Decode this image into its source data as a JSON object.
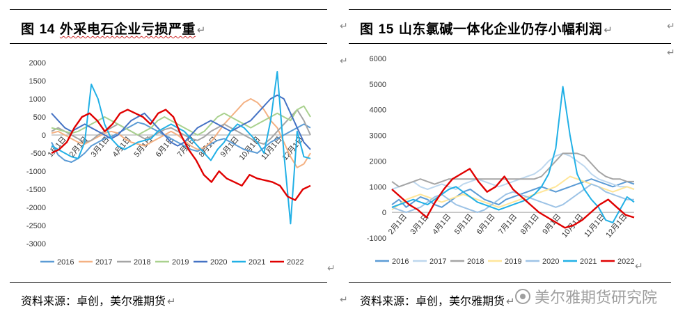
{
  "figures": [
    {
      "title_prefix": "图",
      "title_num": "14",
      "title_text": "外采电石企业亏损严重",
      "source": "资料来源：卓创，美尔雅期货"
    },
    {
      "title_prefix": "图",
      "title_num": "15",
      "title_text": "山东氯碱一体化企业仍存小幅利润",
      "source": "资料来源：卓创，美尔雅期货"
    }
  ],
  "paragraph_mark": "↵",
  "watermark": "美尔雅期货研究院",
  "chart_data": [
    {
      "type": "line",
      "ylim": [
        -3000,
        2000
      ],
      "yticks": [
        2000,
        1500,
        1000,
        500,
        0,
        -500,
        -1000,
        -1500,
        -2000,
        -2500,
        -3000
      ],
      "x_tick_labels": [
        "1月1日",
        "2月1日",
        "3月1日",
        "4月1日",
        "5月1日",
        "6月1日",
        "7月1日",
        "8月1日",
        "9月1日",
        "10月1日",
        "11月1日",
        "12月1日"
      ],
      "series": [
        {
          "name": "2016",
          "color": "#5b9bd5",
          "values": [
            -200,
            -550,
            -700,
            -750,
            -650,
            -500,
            -300,
            -200,
            -100,
            -50,
            50,
            150,
            250,
            350,
            300,
            200,
            100,
            0,
            -100,
            -200,
            -300,
            -400,
            -450,
            -350,
            -250,
            -150,
            -100,
            -200,
            -300,
            -400,
            -450,
            -500,
            -350,
            -200,
            -100,
            0,
            100,
            200,
            300,
            200
          ]
        },
        {
          "name": "2017",
          "color": "#f4b183",
          "values": [
            50,
            100,
            0,
            -100,
            -200,
            -250,
            -150,
            -50,
            50,
            100,
            50,
            -100,
            -200,
            -250,
            -300,
            -200,
            -100,
            0,
            100,
            0,
            -150,
            -300,
            -400,
            -350,
            -200,
            50,
            300,
            500,
            700,
            900,
            1000,
            900,
            700,
            400,
            200,
            -200,
            -600,
            -900,
            -800,
            -500
          ]
        },
        {
          "name": "2018",
          "color": "#a5a5a5",
          "values": [
            100,
            200,
            100,
            0,
            -100,
            -200,
            -150,
            0,
            100,
            200,
            300,
            200,
            100,
            0,
            -100,
            -50,
            50,
            150,
            200,
            100,
            0,
            -100,
            -150,
            -50,
            100,
            200,
            300,
            200,
            100,
            0,
            -100,
            -200,
            -250,
            -100,
            100,
            300,
            500,
            700,
            400,
            0
          ]
        },
        {
          "name": "2019",
          "color": "#a9d18e",
          "values": [
            200,
            150,
            100,
            50,
            100,
            200,
            300,
            400,
            500,
            400,
            300,
            200,
            100,
            0,
            100,
            200,
            400,
            500,
            400,
            300,
            200,
            100,
            0,
            100,
            300,
            500,
            600,
            500,
            400,
            300,
            200,
            300,
            400,
            500,
            600,
            500,
            400,
            700,
            800,
            500
          ]
        },
        {
          "name": "2020",
          "color": "#4472c4",
          "values": [
            600,
            400,
            200,
            100,
            200,
            300,
            200,
            100,
            0,
            -100,
            0,
            200,
            400,
            500,
            600,
            400,
            200,
            0,
            -200,
            -300,
            -200,
            0,
            200,
            300,
            400,
            300,
            200,
            100,
            200,
            300,
            400,
            600,
            800,
            1000,
            1100,
            1000,
            600,
            200,
            -200,
            -400
          ]
        },
        {
          "name": "2021",
          "color": "#21b0e6",
          "values": [
            -300,
            -400,
            -500,
            -600,
            -650,
            -200,
            1400,
            1000,
            300,
            -100,
            -300,
            -400,
            -300,
            -200,
            -150,
            -100,
            100,
            200,
            300,
            200,
            100,
            -100,
            -300,
            -500,
            -700,
            -400,
            -200,
            100,
            300,
            200,
            0,
            -200,
            -500,
            400,
            1750,
            -500,
            -2450,
            100,
            -600,
            -650
          ]
        },
        {
          "name": "2022",
          "color": "#e00000",
          "values": [
            -500,
            -400,
            -200,
            200,
            500,
            600,
            400,
            100,
            300,
            600,
            700,
            600,
            500,
            300,
            600,
            700,
            500,
            0,
            -400,
            -700,
            -1100,
            -1300,
            -1000,
            -1200,
            -1300,
            -1400,
            -1100,
            -1200,
            -1250,
            -1300,
            -1400,
            -1700,
            -1800,
            -1500,
            -1400
          ]
        }
      ]
    },
    {
      "type": "line",
      "ylim": [
        -1000,
        6000
      ],
      "yticks": [
        6000,
        5000,
        4000,
        3000,
        2000,
        1000,
        0,
        -1000
      ],
      "x_tick_labels": [
        "2月1日",
        "3月1日",
        "4月1日",
        "5月1日",
        "6月1日",
        "7月1日",
        "8月1日",
        "9月1日",
        "10月1日",
        "11月1日",
        "12月1日"
      ],
      "series": [
        {
          "name": "2016",
          "color": "#5b9bd5",
          "values": [
            300,
            500,
            200,
            400,
            600,
            500,
            300,
            200,
            400,
            600,
            800,
            900,
            700,
            500,
            400,
            300,
            500,
            600,
            700,
            800,
            900,
            1000,
            900,
            800,
            900,
            1000,
            1100,
            1200,
            1300,
            1200,
            1100,
            1000,
            1100,
            1200,
            1100
          ]
        },
        {
          "name": "2017",
          "color": "#bdd7ee",
          "values": [
            900,
            1000,
            1100,
            1200,
            1000,
            900,
            1000,
            1100,
            1000,
            900,
            1100,
            1200,
            1300,
            1200,
            1100,
            1000,
            1100,
            1200,
            1300,
            1400,
            1500,
            1700,
            2000,
            2200,
            2300,
            2200,
            2000,
            1800,
            1500,
            1300,
            1200,
            1100,
            1000,
            1000,
            900
          ]
        },
        {
          "name": "2018",
          "color": "#a5a5a5",
          "values": [
            1200,
            1000,
            1100,
            1200,
            1300,
            1200,
            1100,
            1200,
            1300,
            1300,
            1300,
            1300,
            1300,
            1300,
            1300,
            1300,
            1300,
            1300,
            1300,
            1300,
            1300,
            1400,
            1700,
            2000,
            2300,
            2300,
            2300,
            2200,
            1900,
            1600,
            1400,
            1300,
            1300,
            1200,
            1200
          ]
        },
        {
          "name": "2019",
          "color": "#ffe699",
          "values": [
            100,
            300,
            500,
            600,
            700,
            600,
            500,
            400,
            500,
            600,
            700,
            600,
            500,
            400,
            300,
            200,
            300,
            400,
            500,
            600,
            700,
            800,
            900,
            1000,
            1200,
            1400,
            1300,
            1200,
            1100,
            1000,
            900,
            800,
            900,
            1000,
            900
          ]
        },
        {
          "name": "2020",
          "color": "#9dc3e6",
          "values": [
            200,
            100,
            0,
            100,
            200,
            400,
            600,
            700,
            500,
            300,
            200,
            100,
            0,
            100,
            300,
            500,
            700,
            800,
            700,
            600,
            500,
            400,
            300,
            200,
            300,
            500,
            700,
            900,
            1100,
            1000,
            800,
            700,
            600,
            500,
            500
          ]
        },
        {
          "name": "2021",
          "color": "#21b0e6",
          "values": [
            200,
            300,
            400,
            500,
            400,
            300,
            500,
            700,
            900,
            1000,
            800,
            600,
            400,
            300,
            200,
            100,
            200,
            300,
            400,
            500,
            700,
            1000,
            1500,
            2500,
            4900,
            3000,
            1500,
            900,
            500,
            200,
            -300,
            -400,
            100,
            600,
            400
          ]
        },
        {
          "name": "2022",
          "color": "#e00000",
          "values": [
            900,
            600,
            300,
            100,
            -200,
            400,
            900,
            1300,
            1500,
            1700,
            1200,
            800,
            1000,
            1400,
            900,
            600,
            300,
            0,
            -200,
            -400,
            -600,
            -500,
            -300,
            0,
            300,
            500,
            200,
            -100,
            -200
          ]
        }
      ]
    }
  ]
}
